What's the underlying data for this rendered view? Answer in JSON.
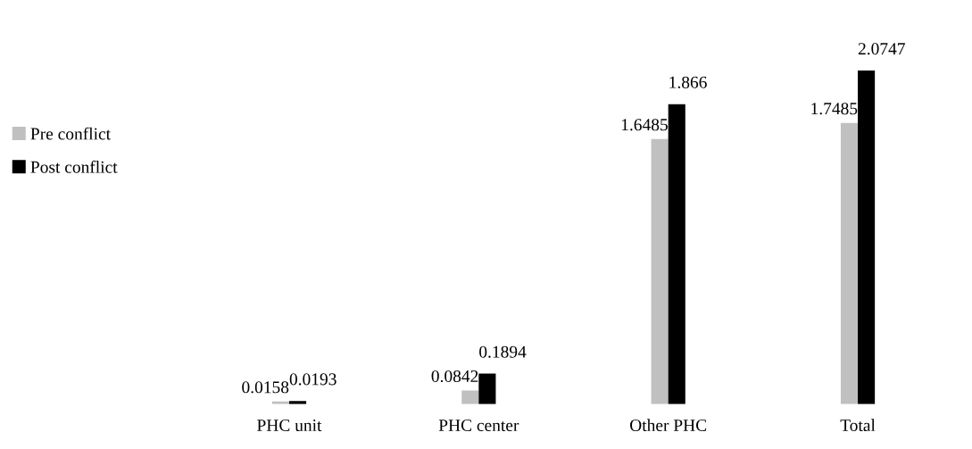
{
  "chart_data": {
    "type": "bar",
    "categories": [
      "PHC unit",
      "PHC center",
      "Other PHC",
      "Total"
    ],
    "series": [
      {
        "name": "Pre conflict",
        "color": "#c0c0c0",
        "values": [
          0.0158,
          0.0842,
          1.6485,
          1.7485
        ]
      },
      {
        "name": "Post conflict",
        "color": "#000000",
        "values": [
          0.0193,
          0.1894,
          1.866,
          2.0747
        ]
      }
    ],
    "data_labels": true,
    "legend": "left",
    "grid": false
  }
}
